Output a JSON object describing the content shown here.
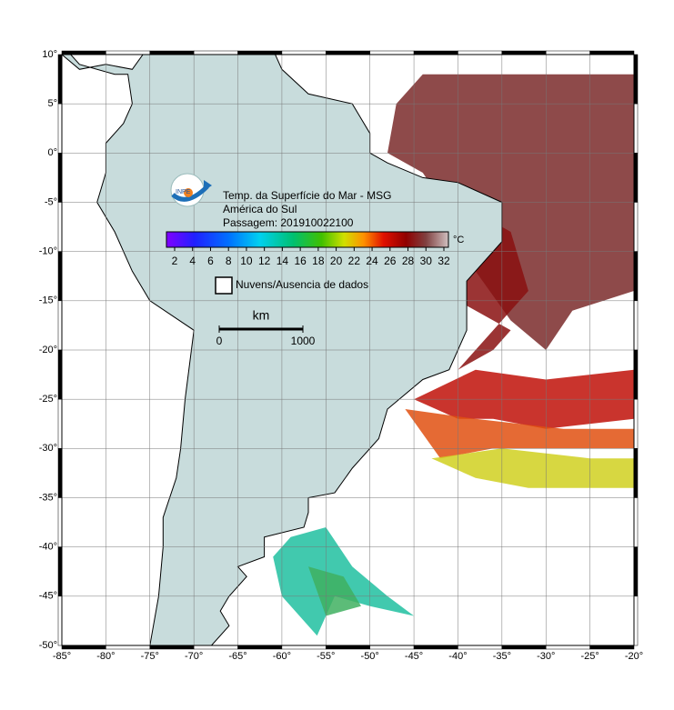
{
  "map": {
    "title": [
      "Temp. da Superfície do Mar - MSG",
      "América do Sul",
      "Passagem: 201910022100"
    ],
    "colorbar": {
      "ticks": [
        2,
        4,
        6,
        8,
        10,
        12,
        14,
        16,
        18,
        20,
        22,
        24,
        26,
        28,
        30,
        32
      ],
      "unit": "°C"
    },
    "legend": "Nuvens/Ausencia de dados",
    "scale": {
      "unit": "km",
      "ticks": [
        0,
        1000
      ]
    },
    "xticks": [
      {
        "value": -85,
        "label": "-85°"
      },
      {
        "value": -80,
        "label": "-80°"
      },
      {
        "value": -75,
        "label": "-75°"
      },
      {
        "value": -70,
        "label": "-70°"
      },
      {
        "value": -65,
        "label": "-65°"
      },
      {
        "value": -60,
        "label": "-60°"
      },
      {
        "value": -55,
        "label": "-55°"
      },
      {
        "value": -50,
        "label": "-50°"
      },
      {
        "value": -45,
        "label": "-45°"
      },
      {
        "value": -40,
        "label": "-40°"
      },
      {
        "value": -35,
        "label": "-35°"
      },
      {
        "value": -30,
        "label": "-30°"
      },
      {
        "value": -25,
        "label": "-25°"
      },
      {
        "value": -20,
        "label": "-20°"
      }
    ],
    "yticks": [
      {
        "value": 10,
        "label": "10°"
      },
      {
        "value": 5,
        "label": "5°"
      },
      {
        "value": 0,
        "label": "0°"
      },
      {
        "value": -5,
        "label": "-5°"
      },
      {
        "value": -10,
        "label": "-10°"
      },
      {
        "value": -15,
        "label": "-15°"
      },
      {
        "value": -20,
        "label": "-20°"
      },
      {
        "value": -25,
        "label": "-25°"
      },
      {
        "value": -30,
        "label": "-30°"
      },
      {
        "value": -35,
        "label": "-35°"
      },
      {
        "value": -40,
        "label": "-40°"
      },
      {
        "value": -45,
        "label": "-45°"
      },
      {
        "value": -50,
        "label": "-50°"
      }
    ]
  }
}
